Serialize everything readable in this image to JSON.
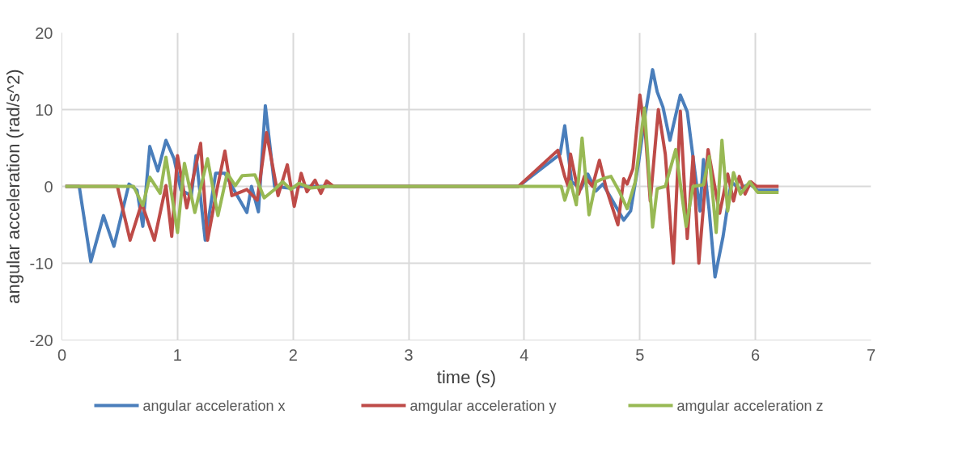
{
  "chart_data": {
    "type": "line",
    "xlabel": "time (s)",
    "ylabel": "angular acceleration (rad/s^2)",
    "xlim": [
      0,
      7
    ],
    "xticks": [
      0,
      1,
      2,
      3,
      4,
      5,
      6,
      7
    ],
    "ylim": [
      -20,
      20
    ],
    "yticks": [
      -20,
      -10,
      0,
      10,
      20
    ],
    "grid": true,
    "legend": "bottom",
    "marker": "none",
    "line_style": "solid",
    "series": [
      {
        "name": "angular acceleration x",
        "color": "#4a7ebb",
        "x": [
          0.03,
          0.15,
          0.25,
          0.36,
          0.45,
          0.58,
          0.65,
          0.7,
          0.76,
          0.83,
          0.9,
          0.97,
          1.03,
          1.12,
          1.16,
          1.24,
          1.33,
          1.41,
          1.49,
          1.6,
          1.64,
          1.7,
          1.76,
          1.84,
          1.96,
          2.05,
          3.95,
          4.31,
          4.35,
          4.41,
          4.49,
          4.55,
          4.62,
          4.68,
          4.75,
          4.86,
          4.92,
          4.99,
          5.05,
          5.11,
          5.15,
          5.2,
          5.26,
          5.35,
          5.41,
          5.47,
          5.52,
          5.55,
          5.6,
          5.65,
          5.72,
          5.79,
          5.86,
          5.95,
          6.02,
          6.2
        ],
        "values": [
          0,
          0,
          -9.8,
          -3.8,
          -7.8,
          0.3,
          -0.5,
          -5.2,
          5.2,
          2,
          6,
          3.6,
          -0.5,
          -1.2,
          4,
          -7,
          1.7,
          1.7,
          -0.5,
          -3.4,
          0,
          -3.3,
          10.5,
          0,
          -0.2,
          0,
          0,
          4.2,
          7.9,
          0.6,
          -0.3,
          1.6,
          -0.6,
          0.3,
          -1.5,
          -4.4,
          -3.2,
          3.2,
          9.7,
          15.2,
          12.3,
          10.3,
          6,
          11.9,
          9.7,
          2.6,
          -3.2,
          3.5,
          -3.2,
          -11.8,
          -6.5,
          0.6,
          -0.3,
          0.3,
          -0.5,
          -0.5
        ]
      },
      {
        "name": "amgular acceleration y",
        "color": "#be4b48",
        "x": [
          0.03,
          0.48,
          0.59,
          0.69,
          0.8,
          0.9,
          0.95,
          1.0,
          1.08,
          1.2,
          1.26,
          1.34,
          1.41,
          1.47,
          1.6,
          1.69,
          1.77,
          1.87,
          1.95,
          2.01,
          2.07,
          2.12,
          2.19,
          2.24,
          2.29,
          2.35,
          3.95,
          4.29,
          4.35,
          4.38,
          4.4,
          4.47,
          4.52,
          4.59,
          4.65,
          4.71,
          4.81,
          4.86,
          4.89,
          4.94,
          5.0,
          5.05,
          5.09,
          5.16,
          5.22,
          5.29,
          5.35,
          5.41,
          5.46,
          5.51,
          5.59,
          5.69,
          5.76,
          5.81,
          5.86,
          5.91,
          5.96,
          6.01,
          6.2
        ],
        "values": [
          0,
          0,
          -7,
          -2.2,
          -7,
          0.1,
          -6.5,
          4,
          -2.8,
          5.6,
          -7,
          -0.5,
          4.6,
          -1.2,
          -0.4,
          -1.8,
          7,
          -1.2,
          2.8,
          -2.6,
          1.7,
          -0.7,
          0.8,
          -0.9,
          0.7,
          0,
          0,
          4.7,
          1.3,
          0,
          4.2,
          -1,
          1.3,
          0,
          3.4,
          -0.3,
          -5,
          1,
          0.3,
          2.3,
          11.9,
          6.5,
          -1.9,
          10,
          4.2,
          -10,
          9.8,
          -6.8,
          3.9,
          -10,
          4.8,
          -3.5,
          1.6,
          -1.9,
          1.3,
          -1,
          0.6,
          0,
          0
        ]
      },
      {
        "name": "amgular acceleration z",
        "color": "#98b954",
        "x": [
          0.03,
          0.62,
          0.7,
          0.76,
          0.85,
          0.9,
          1.0,
          1.06,
          1.15,
          1.26,
          1.35,
          1.43,
          1.5,
          1.56,
          1.67,
          1.75,
          1.84,
          1.91,
          1.98,
          2.05,
          2.15,
          2.3,
          4.32,
          4.35,
          4.4,
          4.45,
          4.5,
          4.56,
          4.62,
          4.68,
          4.75,
          4.82,
          4.89,
          4.96,
          5.04,
          5.11,
          5.15,
          5.22,
          5.31,
          5.4,
          5.46,
          5.55,
          5.6,
          5.66,
          5.71,
          5.76,
          5.81,
          5.87,
          5.95,
          6.02,
          6.2
        ],
        "values": [
          0,
          0,
          -2.5,
          1.2,
          -0.9,
          3.8,
          -6,
          3,
          -3.4,
          3.6,
          -3.8,
          1.7,
          0.1,
          1.4,
          1.5,
          -1.5,
          -0.4,
          0.6,
          -0.4,
          0.4,
          -0.2,
          0,
          0,
          -1.8,
          0.6,
          -2.4,
          6.3,
          -3.7,
          0.6,
          1,
          1.3,
          -0.6,
          -2.9,
          0.6,
          10.2,
          -5.3,
          -0.3,
          0,
          4.8,
          -5.2,
          0,
          0.2,
          3.9,
          -6,
          6,
          -3.2,
          1.8,
          -1,
          0.6,
          -0.8,
          -0.8
        ]
      }
    ]
  }
}
